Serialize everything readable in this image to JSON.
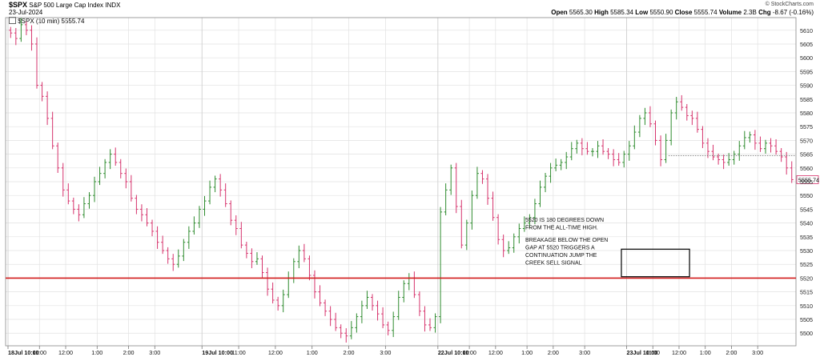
{
  "header": {
    "symbol": "$SPX",
    "name": "S&P 500 Large Cap Index",
    "exchange": "INDX",
    "date": "23-Jul-2024",
    "legend": "$SPX (10 min) 5555.74",
    "credit": "© StockCharts.com",
    "ohlc": {
      "open_label": "Open",
      "open": "5565.30",
      "high_label": "High",
      "high": "5585.34",
      "low_label": "Low",
      "low": "5550.90",
      "close_label": "Close",
      "close": "5555.74",
      "volume_label": "Volume",
      "volume": "2.3B",
      "chg_label": "Chg",
      "chg": "-8.67 (-0.16%)"
    }
  },
  "annotations": {
    "text1": [
      "5520 IS 180 DEGREES DOWN",
      "FROM THE ALL-TIME HIGH."
    ],
    "text2": [
      "BREAKAGE BELOW THE OPEN",
      "GAP AT 5520 TRIGGERS A",
      "CONTINUATION JUMP THE",
      "CREEK SELL SIGNAL"
    ],
    "last_price_label": "5555.74"
  },
  "colors": {
    "up": "#2e8b2e",
    "down": "#d6336c",
    "support_line": "#d11a1a",
    "grid": "#e2e2e2",
    "last_price_tag": "#d6336c"
  },
  "chart_data": {
    "type": "ohlc-bar",
    "interval": "10 min",
    "ylim": [
      5496,
      5614
    ],
    "y_ticks": [
      5500,
      5505,
      5510,
      5515,
      5520,
      5525,
      5530,
      5535,
      5540,
      5545,
      5550,
      5555,
      5560,
      5565,
      5570,
      5575,
      5580,
      5585,
      5590,
      5595,
      5600,
      5605,
      5610
    ],
    "x_ticks": [
      "18Jul 10:00",
      "11:00",
      "12:00",
      "1:00",
      "2:00",
      "3:00",
      "19Jul 10:00",
      "11:00",
      "12:00",
      "1:00",
      "2:00",
      "3:00",
      "22Jul 10:00",
      "11:00",
      "12:00",
      "1:00",
      "2:00",
      "3:00",
      "23Jul 10:00",
      "11:00",
      "12:00",
      "1:00",
      "2:00",
      "3:00"
    ],
    "support_level": 5520,
    "reference_level": 5564.4,
    "last_price": 5555.74,
    "gap_box": {
      "from_bar": 117,
      "to_bar": 130,
      "low": 5520.5,
      "high": 5530.5
    },
    "days": [
      {
        "date": "18Jul",
        "closes": [
          5609,
          5607,
          5612,
          5610,
          5605,
          5590,
          5586,
          5578,
          5568,
          5560,
          5552,
          5548,
          5545,
          5543,
          5547,
          5550,
          5555,
          5558,
          5562,
          5565,
          5562,
          5558,
          5555,
          5549,
          5545,
          5543,
          5540,
          5537,
          5533,
          5530,
          5527,
          5525,
          5528,
          5533,
          5537,
          5540,
          5545
        ]
      },
      {
        "date": "19Jul",
        "closes": [
          5548,
          5553,
          5556,
          5552,
          5547,
          5541,
          5538,
          5532,
          5529,
          5526,
          5527,
          5522,
          5516,
          5512,
          5510,
          5514,
          5520,
          5526,
          5530,
          5527,
          5521,
          5515,
          5511,
          5508,
          5505,
          5502,
          5500,
          5499,
          5502,
          5506,
          5510,
          5513,
          5510,
          5507,
          5503,
          5501,
          5506,
          5513,
          5518,
          5520,
          5514,
          5508,
          5503,
          5502,
          5506
        ]
      },
      {
        "date": "22Jul",
        "closes": [
          5544,
          5552,
          5560,
          5546,
          5532,
          5540,
          5550,
          5558,
          5556,
          5549,
          5542,
          5534,
          5530,
          5531,
          5535,
          5538,
          5540,
          5542,
          5547,
          5553,
          5557,
          5560,
          5561,
          5562,
          5564,
          5567,
          5569,
          5567,
          5566,
          5566,
          5568,
          5566,
          5565,
          5563,
          5562,
          5565
        ]
      },
      {
        "date": "23Jul",
        "closes": [
          5568,
          5573,
          5578,
          5580,
          5576,
          5570,
          5563,
          5570,
          5580,
          5584,
          5582,
          5579,
          5578,
          5574,
          5569,
          5566,
          5564,
          5563,
          5562,
          5563,
          5565,
          5568,
          5571,
          5572,
          5569,
          5567,
          5569,
          5568,
          5566,
          5564,
          5560,
          5555.74
        ]
      }
    ]
  }
}
